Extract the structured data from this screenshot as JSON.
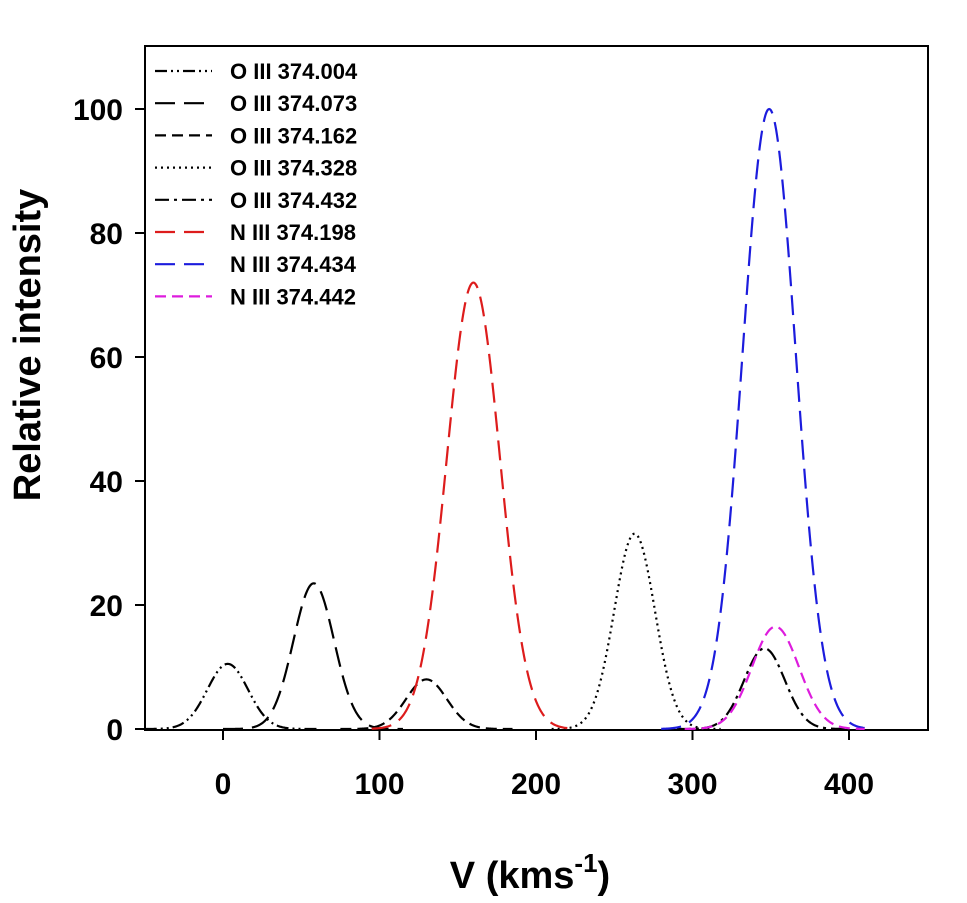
{
  "chart_data": {
    "type": "line",
    "xlabel": "V (kms",
    "xlabel_sup": "-1",
    "xlabel_close": ")",
    "ylabel": "Relative intensity",
    "xlim": [
      -50,
      450
    ],
    "ylim": [
      0,
      110
    ],
    "xticks": [
      0,
      100,
      200,
      300,
      400
    ],
    "yticks": [
      0,
      20,
      40,
      60,
      80,
      100
    ],
    "legend_position": "top-left",
    "grid": false,
    "series": [
      {
        "name": "O III 374.004",
        "color": "#000000",
        "dash": "dash-dot-dot",
        "center": 3,
        "amplitude": 10.5,
        "sigma": 13,
        "range": [
          -50,
          60
        ]
      },
      {
        "name": "O III 374.073",
        "color": "#000000",
        "dash": "long-dash",
        "center": 58,
        "amplitude": 23.5,
        "sigma": 13,
        "range": [
          0,
          115
        ]
      },
      {
        "name": "O III 374.162",
        "color": "#000000",
        "dash": "dash",
        "center": 130,
        "amplitude": 8,
        "sigma": 13,
        "range": [
          75,
          185
        ]
      },
      {
        "name": "O III 374.328",
        "color": "#000000",
        "dash": "dotted",
        "center": 263,
        "amplitude": 31.5,
        "sigma": 13,
        "range": [
          210,
          318
        ]
      },
      {
        "name": "O III 374.432",
        "color": "#000000",
        "dash": "dash-dot",
        "center": 346,
        "amplitude": 13,
        "sigma": 13,
        "range": [
          290,
          400
        ]
      },
      {
        "name": "N III 374.198",
        "color": "#dd1c1c",
        "dash": "long-dash",
        "center": 160,
        "amplitude": 72,
        "sigma": 17,
        "range": [
          95,
          220
        ]
      },
      {
        "name": "N III 374.434",
        "color": "#1c1cdd",
        "dash": "long-dash",
        "center": 349,
        "amplitude": 100,
        "sigma": 17,
        "range": [
          280,
          410
        ]
      },
      {
        "name": "N III 374.442",
        "color": "#dd1cdd",
        "dash": "dash",
        "center": 353,
        "amplitude": 16.5,
        "sigma": 15,
        "range": [
          295,
          410
        ]
      }
    ]
  }
}
